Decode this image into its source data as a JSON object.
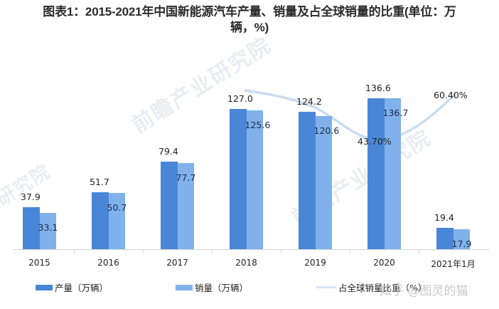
{
  "title": {
    "line1": "图表1：2015-2021年中国新能源汽车产量、销量及占全球销量的比重(单位：万",
    "line2": "辆，%)"
  },
  "colors": {
    "production": "#4a86d8",
    "sales": "#80b1ea",
    "share_line": "#c9dcf0",
    "axis": "#d4d4d4"
  },
  "legend": {
    "production": "产量（万辆）",
    "sales": "销量（万辆）",
    "share": "占全球销量比重（%）"
  },
  "watermarks": {
    "brand": "前瞻产业研究院",
    "fragment": "研究院",
    "credit": "知乎 @图灵的猫"
  },
  "chart_data": {
    "type": "bar",
    "title": "图表1：2015-2021年中国新能源汽车产量、销量及占全球销量的比重(单位：万辆，%)",
    "xlabel": "",
    "ylabel": "",
    "categories": [
      "2015",
      "2016",
      "2017",
      "2018",
      "2019",
      "2020",
      "2021年1月"
    ],
    "series": [
      {
        "name": "产量（万辆）",
        "type": "bar",
        "values": [
          37.9,
          51.7,
          79.4,
          127.0,
          124.2,
          136.6,
          19.4
        ],
        "labels": [
          "37.9",
          "51.7",
          "79.4",
          "127.0",
          "124.2",
          "136.6",
          "19.4"
        ]
      },
      {
        "name": "销量（万辆）",
        "type": "bar",
        "values": [
          33.1,
          50.7,
          77.7,
          125.6,
          120.6,
          136.7,
          17.9
        ],
        "labels": [
          "33.1",
          "50.7",
          "77.7",
          "125.6",
          "120.6",
          "136.7",
          "17.9"
        ]
      },
      {
        "name": "占全球销量比重（%）",
        "type": "line",
        "values": [
          null,
          null,
          null,
          null,
          null,
          43.7,
          60.4
        ],
        "labels": [
          "",
          "",
          "",
          "",
          "",
          "43.70%",
          "60.40%"
        ]
      }
    ],
    "grid": false,
    "legend_position": "bottom",
    "ylim": [
      0,
      140
    ]
  }
}
